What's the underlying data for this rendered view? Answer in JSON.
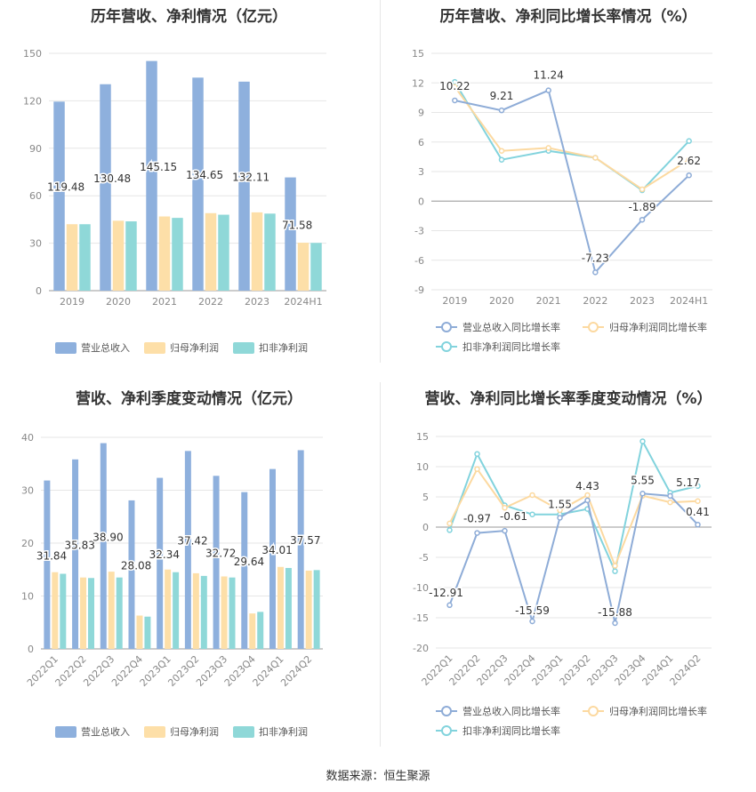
{
  "source": {
    "label": "数据来源：",
    "value": "恒生聚源"
  },
  "colors": {
    "revenue": "#8eb0dd",
    "parent_profit": "#fddfa8",
    "deducted_profit": "#8fd8d8",
    "revenue_line": "#8eacd7",
    "parent_line": "#fcd9a0",
    "deducted_line": "#82d3dd",
    "grid": "#e6e6e6",
    "axis": "#666666"
  },
  "chart_data": [
    {
      "type": "bar",
      "title": "历年营收、净利情况（亿元）",
      "categories": [
        "2019",
        "2020",
        "2021",
        "2022",
        "2023",
        "2024H1"
      ],
      "ylim": [
        0,
        150
      ],
      "yticks": [
        0,
        30,
        60,
        90,
        120,
        150
      ],
      "series": [
        {
          "name": "营业总收入",
          "values": [
            119.48,
            130.48,
            145.15,
            134.65,
            132.11,
            71.58
          ],
          "labels": [
            "119.48",
            "130.48",
            "145.15",
            "134.65",
            "132.11",
            "71.58"
          ]
        },
        {
          "name": "归母净利润",
          "values": [
            42.0,
            44.2,
            46.9,
            49.0,
            49.5,
            30.3
          ]
        },
        {
          "name": "扣非净利润",
          "values": [
            42.0,
            43.8,
            46.0,
            48.0,
            48.7,
            30.2
          ]
        }
      ],
      "legend": "bottom"
    },
    {
      "type": "line",
      "title": "历年营收、净利同比增长率情况（%）",
      "categories": [
        "2019",
        "2020",
        "2021",
        "2022",
        "2023",
        "2024H1"
      ],
      "ylim": [
        -9,
        15
      ],
      "yticks": [
        -9,
        -6,
        -3,
        0,
        3,
        6,
        9,
        12,
        15
      ],
      "series": [
        {
          "name": "营业总收入同比增长率",
          "values": [
            10.22,
            9.21,
            11.24,
            -7.23,
            -1.89,
            2.62
          ],
          "labels": [
            "10.22",
            "9.21",
            "11.24",
            "-7.23",
            "-1.89",
            "2.62"
          ]
        },
        {
          "name": "归母净利润同比增长率",
          "values": [
            11.6,
            5.1,
            5.4,
            4.4,
            1.2,
            4.2
          ]
        },
        {
          "name": "扣非净利润同比增长率",
          "values": [
            12.1,
            4.2,
            5.1,
            4.4,
            1.1,
            6.1
          ]
        }
      ],
      "legend": "bottom"
    },
    {
      "type": "bar",
      "title": "营收、净利季度变动情况（亿元）",
      "categories": [
        "2022Q1",
        "2022Q2",
        "2022Q3",
        "2022Q4",
        "2023Q1",
        "2023Q2",
        "2023Q3",
        "2023Q4",
        "2024Q1",
        "2024Q2"
      ],
      "ylim": [
        0,
        40
      ],
      "yticks": [
        0,
        10,
        20,
        30,
        40
      ],
      "series": [
        {
          "name": "营业总收入",
          "values": [
            31.84,
            35.83,
            38.9,
            28.08,
            32.34,
            37.42,
            32.72,
            29.64,
            34.01,
            37.57
          ],
          "labels": [
            "31.84",
            "35.83",
            "38.90",
            "28.08",
            "32.34",
            "37.42",
            "32.72",
            "29.64",
            "34.01",
            "37.57"
          ]
        },
        {
          "name": "归母净利润",
          "values": [
            14.5,
            13.5,
            14.6,
            6.3,
            15.0,
            14.3,
            13.7,
            6.7,
            15.5,
            14.8
          ]
        },
        {
          "name": "扣非净利润",
          "values": [
            14.2,
            13.4,
            13.5,
            6.1,
            14.5,
            13.8,
            13.5,
            7.0,
            15.3,
            14.9
          ]
        }
      ],
      "legend": "bottom"
    },
    {
      "type": "line",
      "title": "营收、净利同比增长率季度变动情况（%）",
      "categories": [
        "2022Q1",
        "2022Q2",
        "2022Q3",
        "2022Q4",
        "2023Q1",
        "2023Q2",
        "2023Q3",
        "2023Q4",
        "2024Q1",
        "2024Q2"
      ],
      "ylim": [
        -20,
        15
      ],
      "yticks": [
        -20,
        -15,
        -10,
        -5,
        0,
        5,
        10,
        15
      ],
      "series": [
        {
          "name": "营业总收入同比增长率",
          "values": [
            -12.91,
            -0.97,
            -0.61,
            -15.59,
            1.55,
            4.43,
            -15.88,
            5.55,
            5.17,
            0.41
          ],
          "labels": [
            "-12.91",
            "-0.97",
            "-0.61",
            "-15.59",
            "1.55",
            "4.43",
            "-15.88",
            "5.55",
            "5.17",
            "0.41"
          ]
        },
        {
          "name": "归母净利润同比增长率",
          "values": [
            0.6,
            9.6,
            3.2,
            5.3,
            2.8,
            5.3,
            -6.4,
            5.2,
            4.1,
            4.3
          ]
        },
        {
          "name": "扣非净利润同比增长率",
          "values": [
            -0.5,
            12.1,
            3.6,
            2.1,
            2.1,
            3.0,
            -7.3,
            14.2,
            5.7,
            6.8
          ]
        }
      ],
      "legend": "bottom"
    }
  ]
}
